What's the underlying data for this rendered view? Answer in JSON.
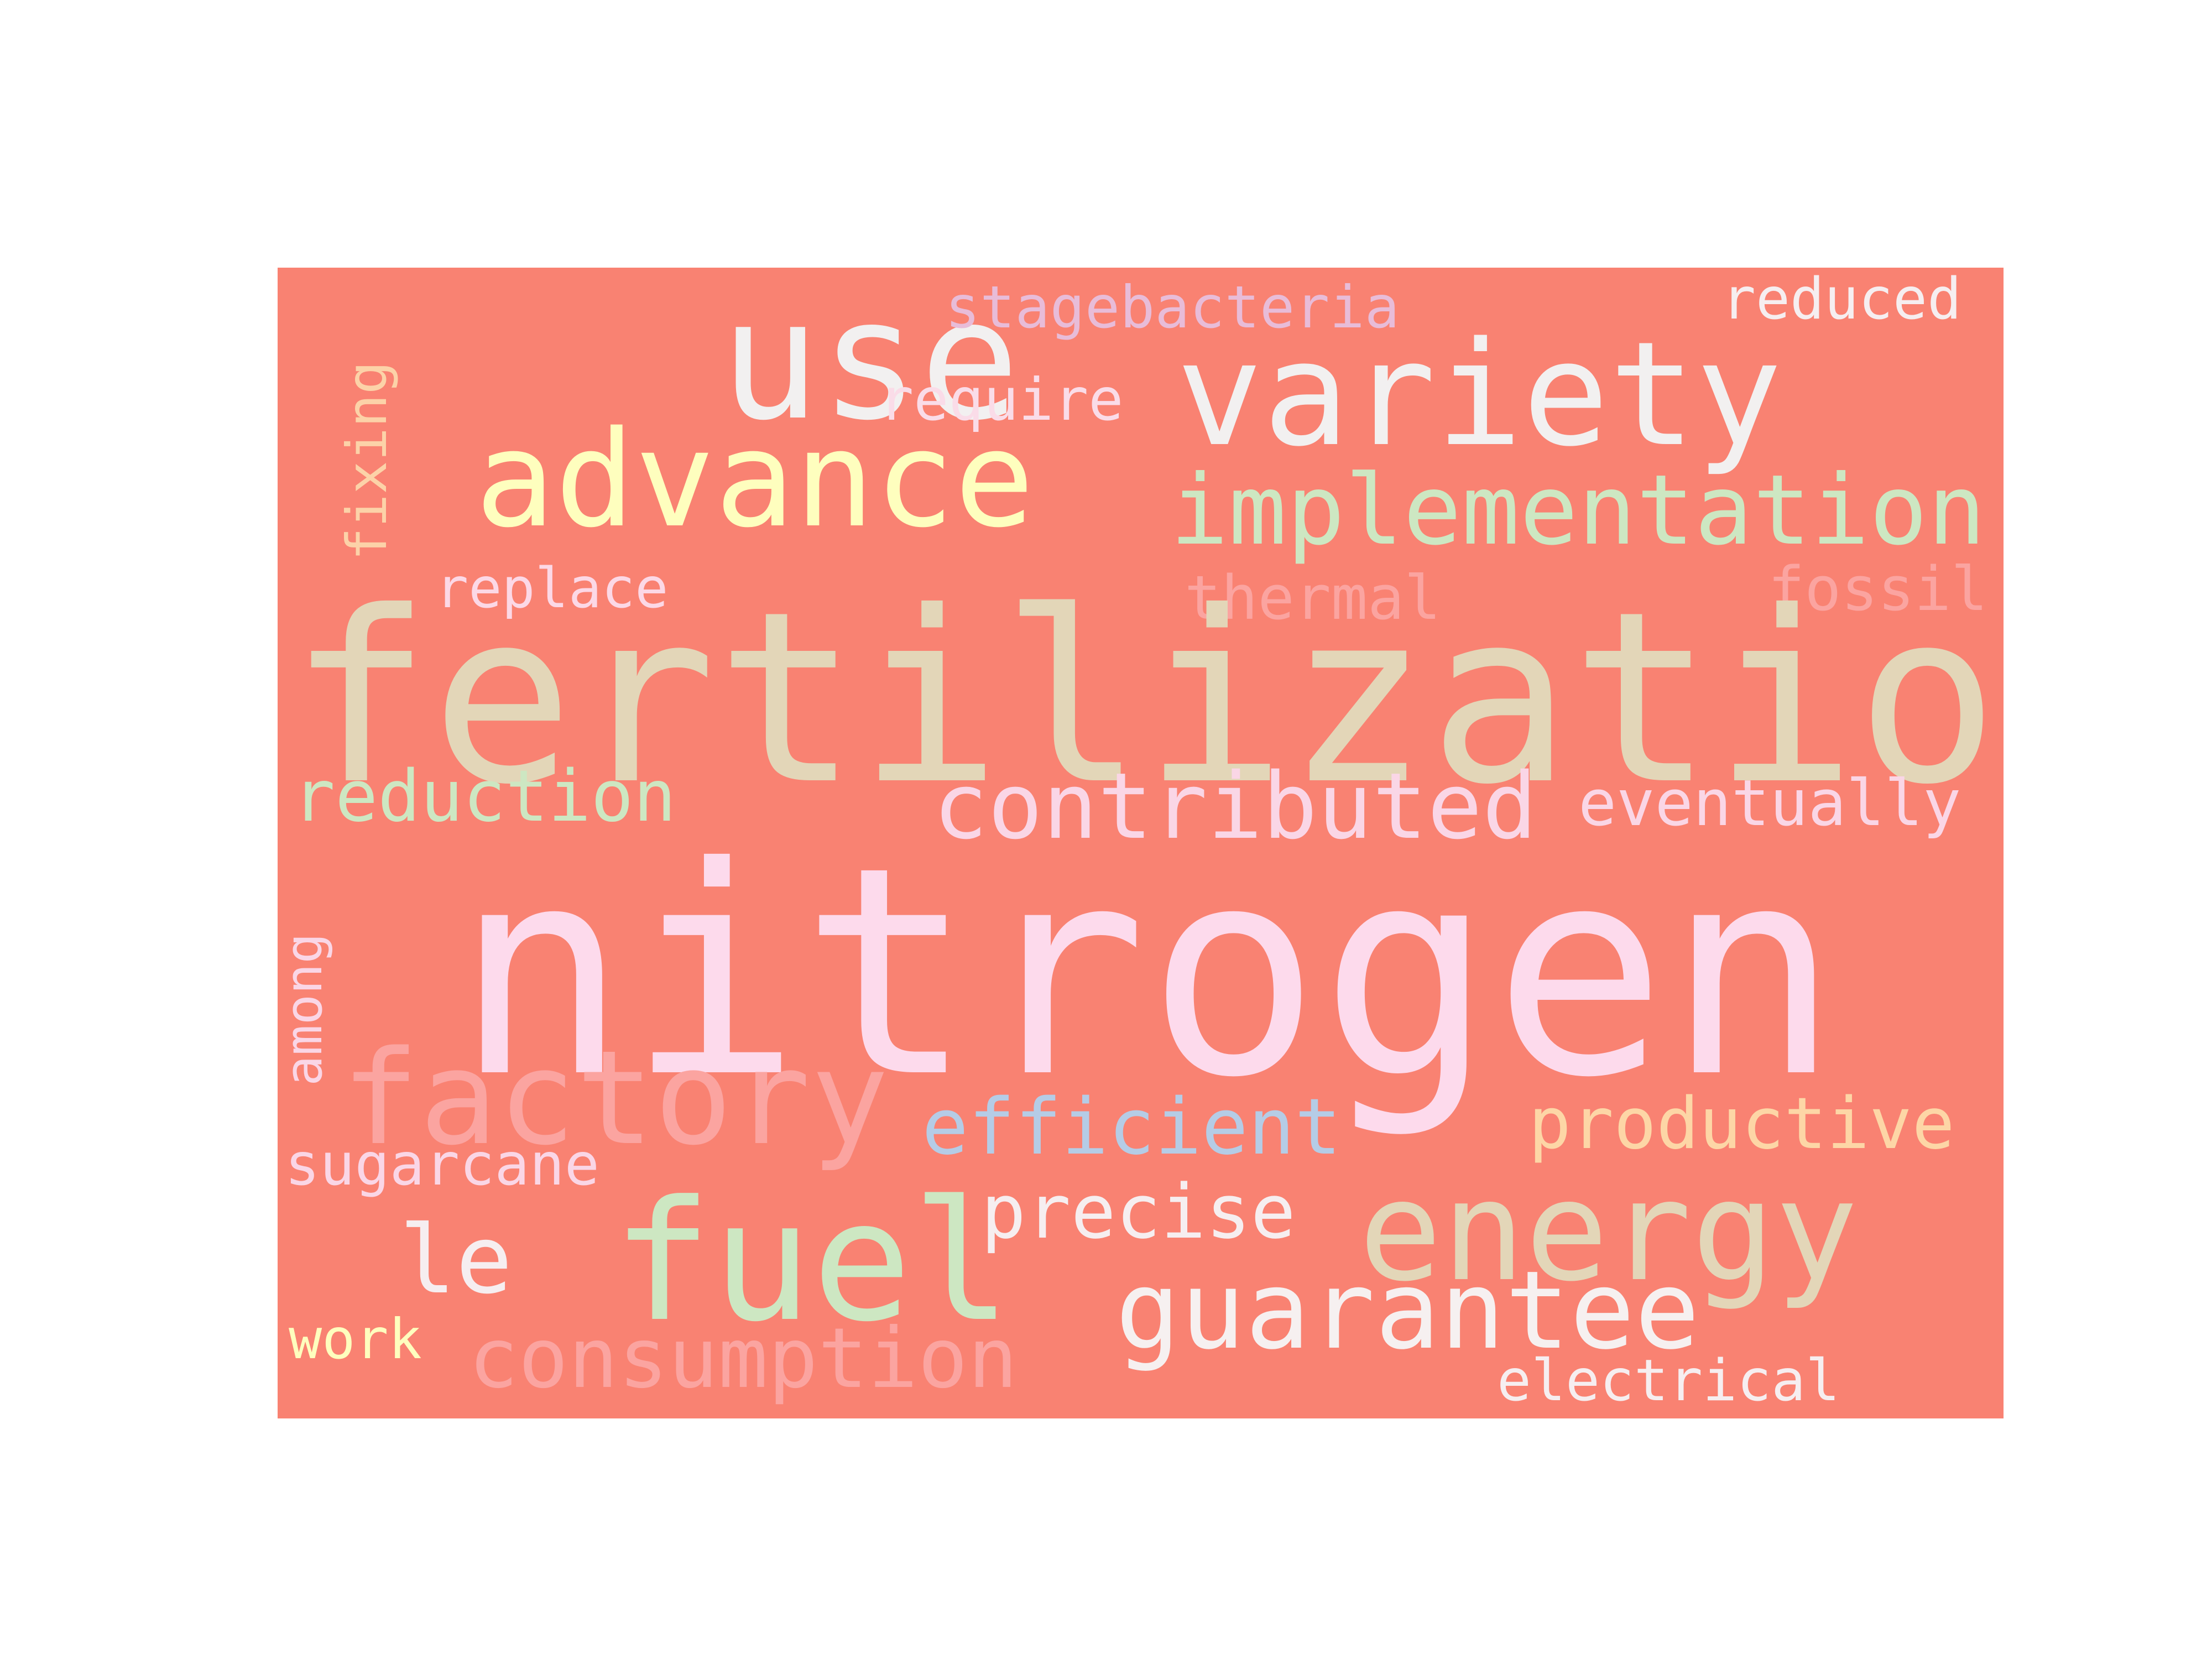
{
  "canvas": {
    "background_color": "#f98272"
  },
  "words": [
    {
      "id": "use",
      "text": "use",
      "color": "#f2f0f0"
    },
    {
      "id": "variety",
      "text": "variety",
      "color": "#f2f0f0"
    },
    {
      "id": "stagebacteria",
      "text": "stagebacteria",
      "color": "#e8bcd8"
    },
    {
      "id": "reduced",
      "text": "reduced",
      "color": "#f6eef0"
    },
    {
      "id": "require",
      "text": "require",
      "color": "#fadce8"
    },
    {
      "id": "fixing",
      "text": "fixing",
      "color": "#fcd2a8"
    },
    {
      "id": "advance",
      "text": "advance",
      "color": "#fefebe"
    },
    {
      "id": "implementation",
      "text": "implementation",
      "color": "#cde7c2"
    },
    {
      "id": "replace",
      "text": "replace",
      "color": "#fcd8e6"
    },
    {
      "id": "thermal",
      "text": "thermal",
      "color": "#fba4a0"
    },
    {
      "id": "fossil",
      "text": "fossil",
      "color": "#fba4a0"
    },
    {
      "id": "fertilization",
      "text": "fertilization",
      "color": "#e3d6b8"
    },
    {
      "id": "reduction",
      "text": "reduction",
      "color": "#cde7c2"
    },
    {
      "id": "contributed",
      "text": "contributed",
      "color": "#fad6e6"
    },
    {
      "id": "eventually",
      "text": "eventually",
      "color": "#fad6e6"
    },
    {
      "id": "nitrogen",
      "text": "nitrogen",
      "color": "#fddaec"
    },
    {
      "id": "among",
      "text": "among",
      "color": "#fad6e6"
    },
    {
      "id": "factory",
      "text": "factory",
      "color": "#fba4a0"
    },
    {
      "id": "efficient",
      "text": "efficient",
      "color": "#b5cce6"
    },
    {
      "id": "productive",
      "text": "productive",
      "color": "#fdd6a6"
    },
    {
      "id": "sugarcane",
      "text": "sugarcane",
      "color": "#fad6e6"
    },
    {
      "id": "precise",
      "text": "precise",
      "color": "#f6eef0"
    },
    {
      "id": "energy",
      "text": "energy",
      "color": "#e3d6b8"
    },
    {
      "id": "fuel",
      "text": "fuel",
      "color": "#cde7c2"
    },
    {
      "id": "le",
      "text": "le",
      "color": "#f6eef0"
    },
    {
      "id": "guarantee",
      "text": "guarantee",
      "color": "#f6f0f0"
    },
    {
      "id": "work",
      "text": "work",
      "color": "#fefebe"
    },
    {
      "id": "consumption",
      "text": "consumption",
      "color": "#fba4a0"
    },
    {
      "id": "electrical",
      "text": "electrical",
      "color": "#f6eef0"
    }
  ]
}
